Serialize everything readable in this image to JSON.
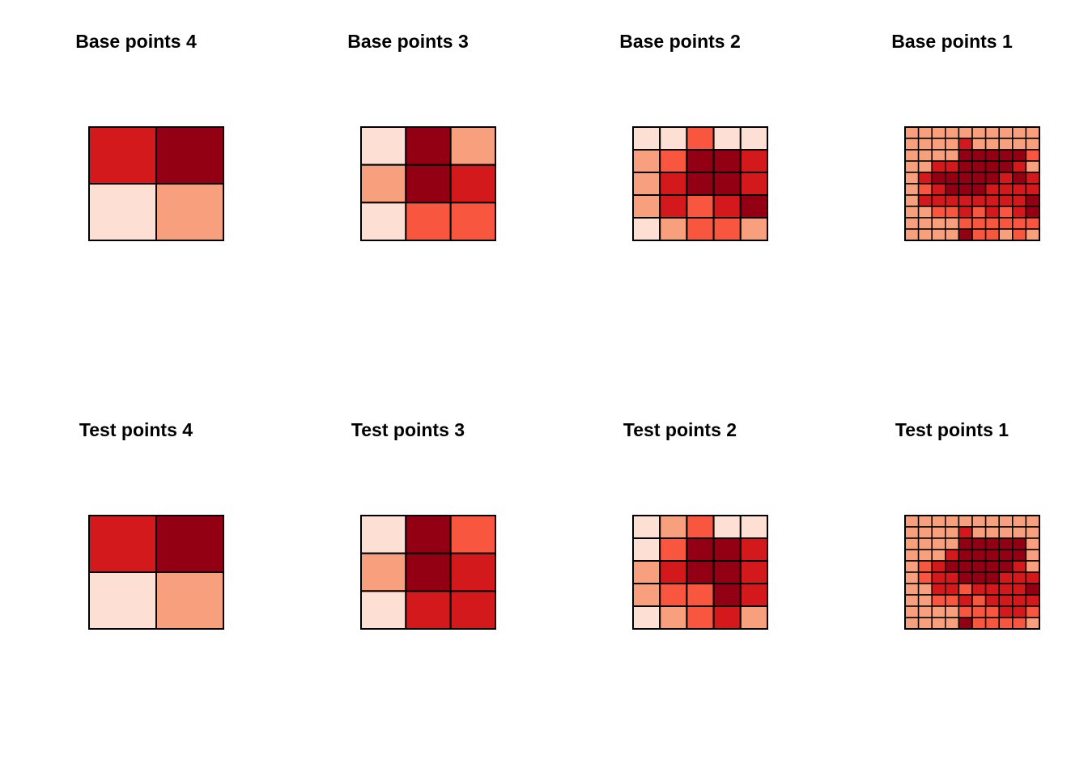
{
  "chart_data": [
    {
      "type": "heatmap",
      "title": "Base points 4",
      "rows": 2,
      "cols": 2,
      "levels": [
        [
          3,
          4
        ],
        [
          1,
          2
        ]
      ]
    },
    {
      "type": "heatmap",
      "title": "Base points 3",
      "rows": 3,
      "cols": 3,
      "levels": [
        [
          1,
          4,
          2
        ],
        [
          2,
          4,
          3
        ],
        [
          1,
          2.5,
          2.5
        ]
      ]
    },
    {
      "type": "heatmap",
      "title": "Base points 2",
      "rows": 5,
      "cols": 5,
      "levels": [
        [
          1,
          1,
          2.5,
          1,
          1
        ],
        [
          2,
          2.5,
          4,
          4,
          3
        ],
        [
          2,
          3,
          4,
          4,
          3
        ],
        [
          2,
          3,
          2.5,
          3,
          4
        ],
        [
          1,
          2,
          2.5,
          2.5,
          2
        ]
      ]
    },
    {
      "type": "heatmap",
      "title": "Base points 1",
      "rows": 10,
      "cols": 10,
      "levels": [
        [
          2,
          2,
          2,
          2,
          2,
          2,
          2,
          2,
          2,
          2
        ],
        [
          2,
          2,
          2,
          2,
          3,
          2,
          2,
          2,
          2,
          2
        ],
        [
          2,
          2,
          2,
          2,
          4,
          4,
          4,
          4,
          4,
          2.5
        ],
        [
          2,
          2,
          3,
          3,
          4,
          4,
          4,
          4,
          3,
          2
        ],
        [
          2,
          3,
          4,
          4,
          4,
          4,
          4,
          3,
          4,
          3
        ],
        [
          2,
          2.5,
          3,
          4,
          4,
          4,
          3,
          3,
          3,
          3
        ],
        [
          2,
          3,
          3,
          3,
          3,
          3,
          3,
          3,
          3,
          4
        ],
        [
          2,
          2,
          2.5,
          2.5,
          3,
          2.5,
          3,
          2.5,
          3,
          4
        ],
        [
          2,
          2,
          2,
          2,
          2.5,
          2.5,
          2.5,
          2.5,
          2.5,
          2.5
        ],
        [
          2,
          2,
          2,
          2,
          4,
          2.5,
          2.5,
          2,
          2.5,
          2
        ]
      ]
    },
    {
      "type": "heatmap",
      "title": "Test points 4",
      "rows": 2,
      "cols": 2,
      "levels": [
        [
          3,
          4
        ],
        [
          1,
          2
        ]
      ]
    },
    {
      "type": "heatmap",
      "title": "Test points 3",
      "rows": 3,
      "cols": 3,
      "levels": [
        [
          1,
          4,
          2.5
        ],
        [
          2,
          4,
          3
        ],
        [
          1,
          3,
          3
        ]
      ]
    },
    {
      "type": "heatmap",
      "title": "Test points 2",
      "rows": 5,
      "cols": 5,
      "levels": [
        [
          1,
          2,
          2.5,
          1,
          1
        ],
        [
          1,
          2.5,
          4,
          4,
          3
        ],
        [
          2,
          3,
          4,
          4,
          3
        ],
        [
          2,
          2.5,
          2.5,
          4,
          3
        ],
        [
          1,
          2,
          2.5,
          3,
          2
        ]
      ]
    },
    {
      "type": "heatmap",
      "title": "Test points 1",
      "rows": 10,
      "cols": 10,
      "levels": [
        [
          2,
          2,
          2,
          2,
          2,
          2,
          2,
          2,
          2,
          2
        ],
        [
          2,
          2,
          2,
          2,
          3,
          2,
          2,
          2,
          2,
          2
        ],
        [
          2,
          2,
          2,
          2,
          4,
          4,
          4,
          4,
          4,
          2
        ],
        [
          2,
          2,
          2,
          3,
          4,
          4,
          4,
          4,
          4,
          2
        ],
        [
          2,
          2.5,
          3,
          4,
          4,
          4,
          4,
          4,
          3,
          2
        ],
        [
          2,
          2.5,
          3,
          3,
          4,
          4,
          4,
          3,
          3,
          3
        ],
        [
          2,
          2,
          3,
          3,
          2.5,
          3,
          3,
          3,
          3,
          4
        ],
        [
          2,
          2,
          2.5,
          2.5,
          3,
          2.5,
          3,
          3,
          3,
          3
        ],
        [
          2,
          2,
          2,
          2,
          2.5,
          2.5,
          2.5,
          3,
          3,
          2.5
        ],
        [
          2,
          2,
          2,
          2,
          4,
          2.5,
          2.5,
          2.5,
          2.5,
          2
        ]
      ]
    }
  ],
  "palette": {
    "1": "#fde0d3",
    "2": "#f8a07e",
    "2.5": "#f9563f",
    "3": "#d3191c",
    "4": "#930014"
  },
  "border_color": "#000000"
}
